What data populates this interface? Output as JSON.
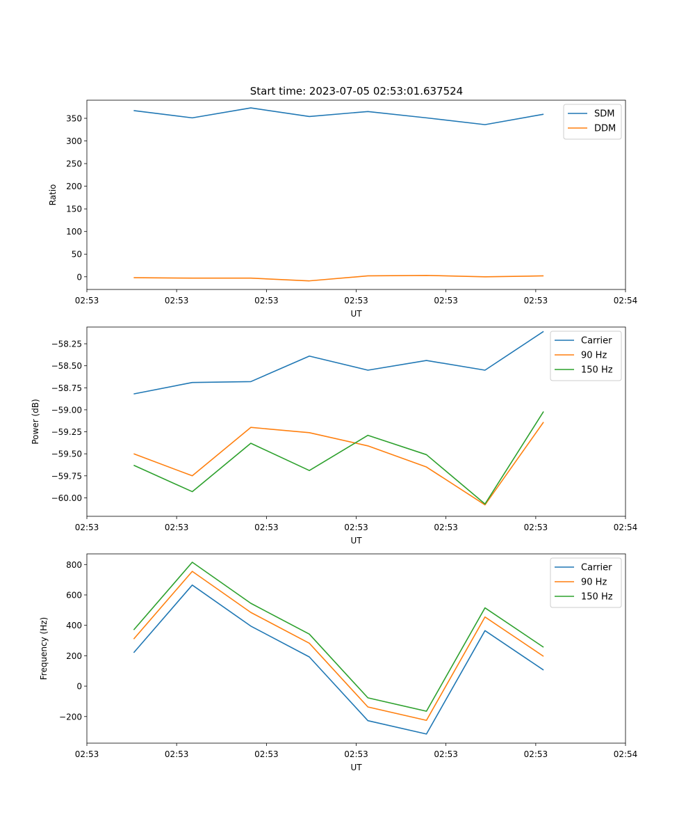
{
  "title": "Start time: 2023-07-05 02:53:01.637524",
  "chart_data": [
    {
      "type": "line",
      "xlabel": "UT",
      "ylabel": "Ratio",
      "x": [
        1,
        2,
        3,
        4,
        5,
        6,
        7,
        8
      ],
      "xlim": [
        0.2,
        9.4
      ],
      "x_ticks": [
        0.2,
        1.733,
        3.267,
        4.8,
        6.333,
        7.867,
        9.4
      ],
      "x_tick_labels": [
        "02:53",
        "02:53",
        "02:53",
        "02:53",
        "02:53",
        "02:53",
        "02:54"
      ],
      "ylim": [
        -28,
        390
      ],
      "y_ticks": [
        0,
        50,
        100,
        150,
        200,
        250,
        300,
        350
      ],
      "y_tick_labels": [
        "0",
        "50",
        "100",
        "150",
        "200",
        "250",
        "300",
        "350"
      ],
      "legend": "top-right",
      "series": [
        {
          "name": "SDM",
          "color": "#1f77b4",
          "values": [
            367,
            351,
            373,
            354,
            365,
            351,
            336,
            359
          ]
        },
        {
          "name": "DDM",
          "color": "#ff7f0e",
          "values": [
            -2,
            -3,
            -3,
            -9,
            2,
            3,
            0,
            2
          ]
        }
      ]
    },
    {
      "type": "line",
      "xlabel": "UT",
      "ylabel": "Power (dB)",
      "x": [
        1,
        2,
        3,
        4,
        5,
        6,
        7,
        8
      ],
      "xlim": [
        0.2,
        9.4
      ],
      "x_ticks": [
        0.2,
        1.733,
        3.267,
        4.8,
        6.333,
        7.867,
        9.4
      ],
      "x_tick_labels": [
        "02:53",
        "02:53",
        "02:53",
        "02:53",
        "02:53",
        "02:53",
        "02:54"
      ],
      "ylim": [
        -60.21,
        -58.06
      ],
      "y_ticks": [
        -60.0,
        -59.75,
        -59.5,
        -59.25,
        -59.0,
        -58.75,
        -58.5,
        -58.25
      ],
      "y_tick_labels": [
        "−60.00",
        "−59.75",
        "−59.50",
        "−59.25",
        "−59.00",
        "−58.75",
        "−58.50",
        "−58.25"
      ],
      "legend": "top-right",
      "series": [
        {
          "name": "Carrier",
          "color": "#1f77b4",
          "values": [
            -58.82,
            -58.69,
            -58.68,
            -58.39,
            -58.55,
            -58.44,
            -58.55,
            -58.11
          ]
        },
        {
          "name": "90 Hz",
          "color": "#ff7f0e",
          "values": [
            -59.5,
            -59.75,
            -59.2,
            -59.26,
            -59.41,
            -59.65,
            -60.08,
            -59.14
          ]
        },
        {
          "name": "150 Hz",
          "color": "#2ca02c",
          "values": [
            -59.63,
            -59.93,
            -59.38,
            -59.69,
            -59.29,
            -59.51,
            -60.07,
            -59.02
          ]
        }
      ]
    },
    {
      "type": "line",
      "xlabel": "UT",
      "ylabel": "Frequency (Hz)",
      "x": [
        1,
        2,
        3,
        4,
        5,
        6,
        7,
        8
      ],
      "xlim": [
        0.2,
        9.4
      ],
      "x_ticks": [
        0.2,
        1.733,
        3.267,
        4.8,
        6.333,
        7.867,
        9.4
      ],
      "x_tick_labels": [
        "02:53",
        "02:53",
        "02:53",
        "02:53",
        "02:53",
        "02:53",
        "02:54"
      ],
      "ylim": [
        -375,
        870
      ],
      "y_ticks": [
        -200,
        0,
        200,
        400,
        600,
        800
      ],
      "y_tick_labels": [
        "−200",
        "0",
        "200",
        "400",
        "600",
        "800"
      ],
      "legend": "top-right",
      "series": [
        {
          "name": "Carrier",
          "color": "#1f77b4",
          "values": [
            220,
            665,
            395,
            192,
            -227,
            -315,
            365,
            106
          ]
        },
        {
          "name": "90 Hz",
          "color": "#ff7f0e",
          "values": [
            310,
            755,
            485,
            282,
            -137,
            -225,
            455,
            196
          ]
        },
        {
          "name": "150 Hz",
          "color": "#2ca02c",
          "values": [
            370,
            815,
            545,
            342,
            -77,
            -165,
            515,
            256
          ]
        }
      ]
    }
  ]
}
